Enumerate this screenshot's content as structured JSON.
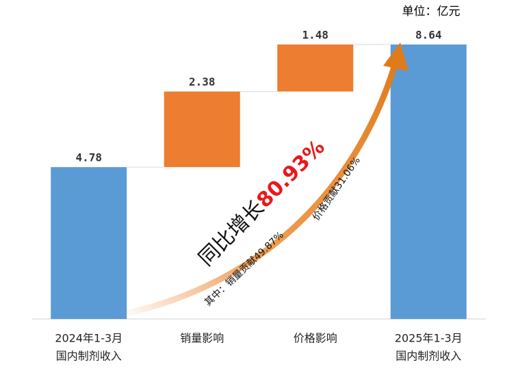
{
  "chart_data": {
    "type": "waterfall",
    "unit": "单位：亿元",
    "categories": [
      [
        "2024年1-3月",
        "国内制剂收入"
      ],
      [
        "销量影响"
      ],
      [
        "价格影响"
      ],
      [
        "2025年1-3月",
        "国内制剂收入"
      ]
    ],
    "values": [
      4.78,
      2.38,
      1.48,
      8.64
    ],
    "kinds": [
      "total",
      "delta",
      "delta",
      "total"
    ],
    "colors": {
      "total": "#5b9bd5",
      "delta": "#ed7d31"
    },
    "annotations": {
      "growth_label": "同比增长",
      "growth_value": "80.93%",
      "volume": "其中：销量贡献49.87%",
      "price": "价格贡献31.06%"
    }
  }
}
